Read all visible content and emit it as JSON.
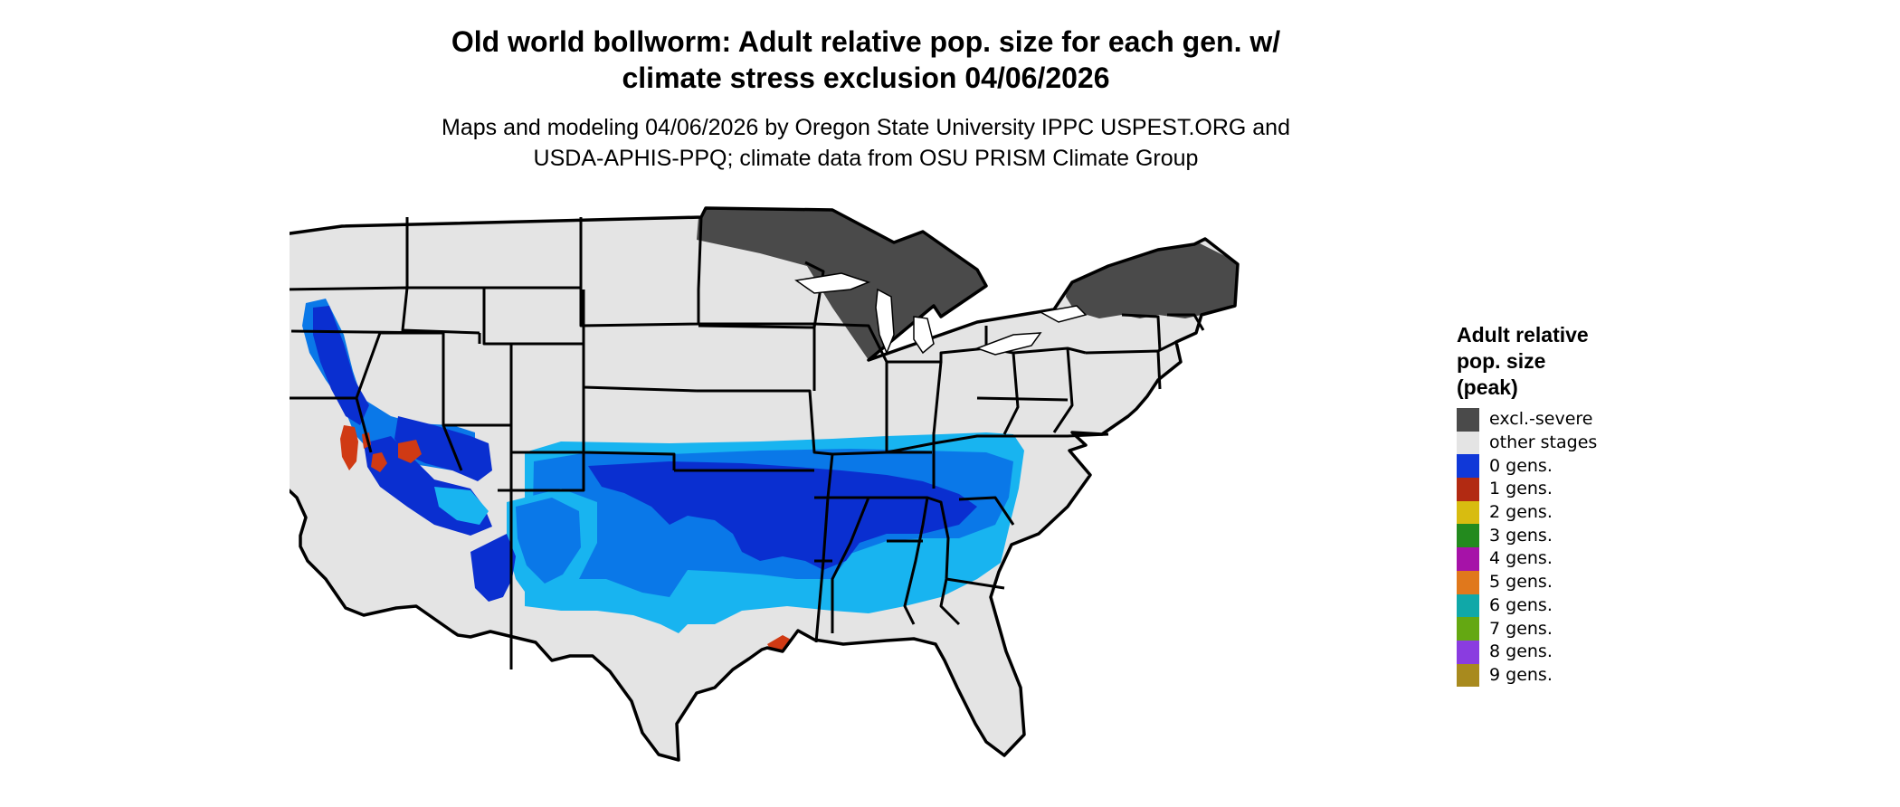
{
  "title_line1": "Old world bollworm: Adult relative pop. size for each gen. w/",
  "title_line2": "climate stress exclusion 04/06/2026",
  "subtitle_line1": "Maps and modeling 04/06/2026 by Oregon State University IPPC USPEST.ORG and",
  "subtitle_line2": "USDA-APHIS-PPQ; climate data from OSU PRISM Climate Group",
  "legend": {
    "title_line1": "Adult relative",
    "title_line2": "pop. size",
    "title_line3": "(peak)",
    "items": [
      {
        "label": "excl.-severe",
        "color": "#4a4a4a"
      },
      {
        "label": "other stages",
        "color": "#e4e4e4"
      },
      {
        "label": "0 gens.",
        "color": "#1038d8"
      },
      {
        "label": "1 gens.",
        "color": "#b22a12"
      },
      {
        "label": "2 gens.",
        "color": "#d8bc10"
      },
      {
        "label": "3 gens.",
        "color": "#238a1e"
      },
      {
        "label": "4 gens.",
        "color": "#a612a8"
      },
      {
        "label": "5 gens.",
        "color": "#e0781c"
      },
      {
        "label": "6 gens.",
        "color": "#10a8a8"
      },
      {
        "label": "7 gens.",
        "color": "#64a812"
      },
      {
        "label": "8 gens.",
        "color": "#8a3ce0"
      },
      {
        "label": "9 gens.",
        "color": "#a88a1e"
      }
    ]
  },
  "map_colors": {
    "land": "#e4e4e4",
    "excluded": "#4a4a4a",
    "gen0_dark": "#0a2fd0",
    "gen0_mid": "#0a78e8",
    "gen0_light": "#18b4f0",
    "gen1_red": "#d03a14",
    "border": "#000000"
  }
}
